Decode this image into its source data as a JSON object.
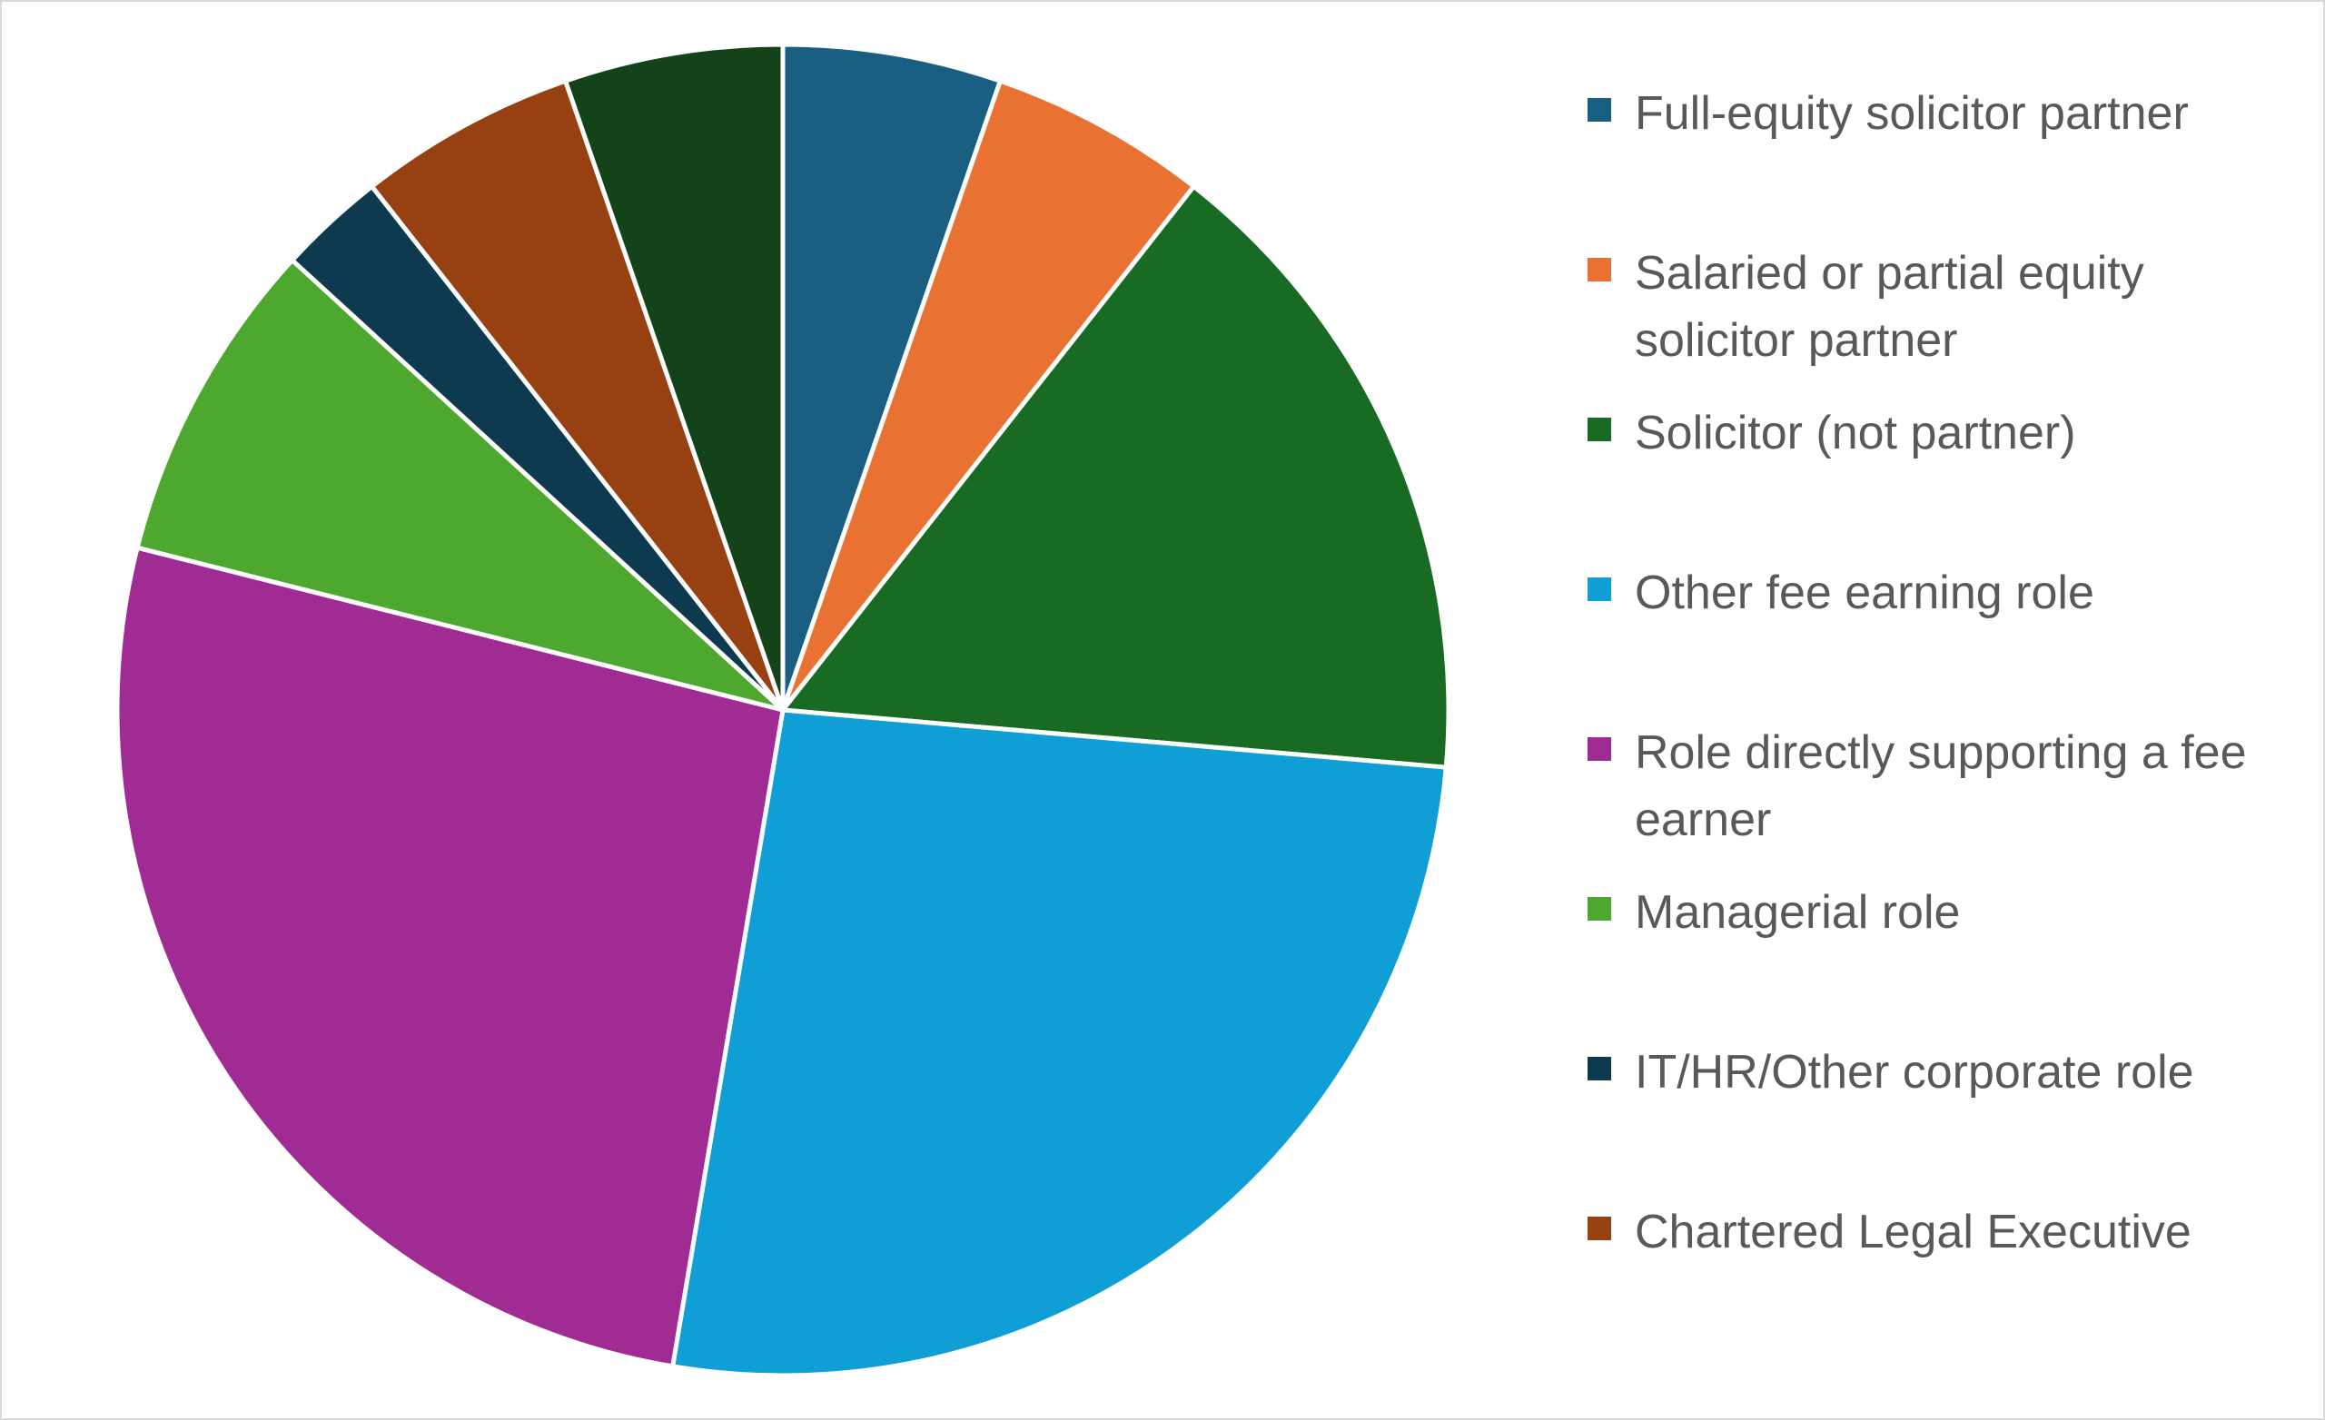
{
  "chart_data": {
    "type": "pie",
    "start_angle_deg": 0,
    "direction": "clockwise",
    "legend_position": "right",
    "slices": [
      {
        "label": "Full-equity solicitor partner",
        "value": 5.3,
        "color": "#1a5e82"
      },
      {
        "label": "Salaried or partial equity solicitor partner",
        "value": 5.3,
        "color": "#e97132"
      },
      {
        "label": "Solicitor (not partner)",
        "value": 15.8,
        "color": "#196b24"
      },
      {
        "label": "Other fee earning role",
        "value": 26.3,
        "color": "#0f9ed5"
      },
      {
        "label": "Role directly supporting a fee earner",
        "value": 26.3,
        "color": "#a02b93"
      },
      {
        "label": "Managerial role",
        "value": 7.9,
        "color": "#4ea72e"
      },
      {
        "label": "IT/HR/Other corporate role",
        "value": 2.6,
        "color": "#0e3a4f"
      },
      {
        "label": "Chartered Legal Executive",
        "value": 5.3,
        "color": "#974012"
      },
      {
        "label": "",
        "value": 5.3,
        "color": "#144319"
      }
    ]
  }
}
